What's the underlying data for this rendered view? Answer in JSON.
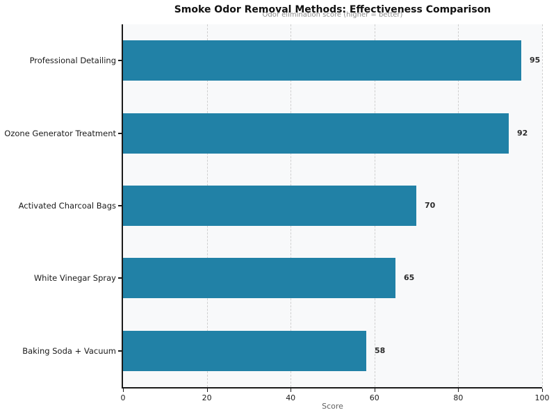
{
  "title": "Smoke Odor Removal Methods: Effectiveness Comparison",
  "subtitle": "Odor elimination score (higher = better)",
  "chart_data": {
    "type": "bar",
    "orientation": "horizontal",
    "title": "Smoke Odor Removal Methods: Effectiveness Comparison",
    "subtitle": "Odor elimination score (higher = better)",
    "categories": [
      "Professional Detailing",
      "Ozone Generator Treatment",
      "Activated Charcoal Bags",
      "White Vinegar Spray",
      "Baking Soda + Vacuum"
    ],
    "values": [
      95,
      92,
      70,
      65,
      58
    ],
    "value_labels": [
      "95",
      "92",
      "70",
      "65",
      "58"
    ],
    "xlabel": "Score",
    "ylabel": "",
    "xlim": [
      0,
      100
    ],
    "xticks": [
      0,
      20,
      40,
      60,
      80,
      100
    ],
    "grid": "vertical-dashed",
    "legend": "none",
    "colors": {
      "bar": "#2181a6",
      "plot_background": "#f8f9fa",
      "figure_background": "#ffffff",
      "gridline": "#cfcfcf",
      "spine": "#1a1a1a",
      "value_label": "#2b2b2b",
      "subtitle_text": "#8d8d8d"
    }
  }
}
